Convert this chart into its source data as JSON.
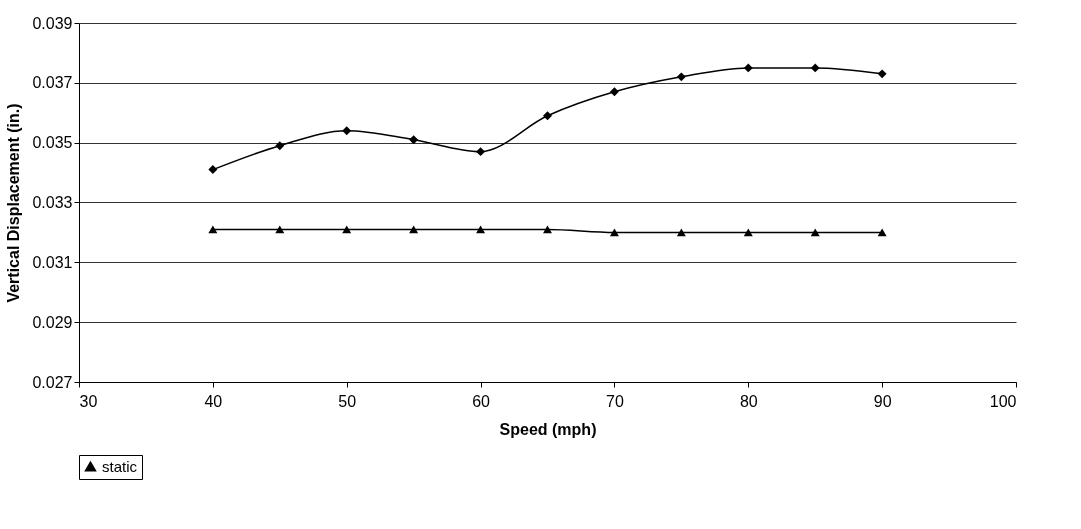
{
  "chart_data": {
    "type": "line",
    "xlabel": "Speed (mph)",
    "ylabel": "Vertical Displacement (in.)",
    "x": [
      40,
      45,
      50,
      55,
      60,
      65,
      70,
      75,
      80,
      85,
      90
    ],
    "series": [
      {
        "color": "#000000",
        "marker": "diamond",
        "values": [
          0.0341,
          0.0349,
          0.0354,
          0.0351,
          0.0347,
          0.0359,
          0.0367,
          0.0372,
          0.0375,
          0.0375,
          0.0373
        ]
      },
      {
        "name": "static",
        "color": "#000000",
        "marker": "triangle",
        "values": [
          0.0321,
          0.0321,
          0.0321,
          0.0321,
          0.0321,
          0.0321,
          0.032,
          0.032,
          0.032,
          0.032,
          0.032
        ]
      }
    ],
    "xlim": [
      30,
      100
    ],
    "xticks": [
      30,
      40,
      50,
      60,
      70,
      80,
      90,
      100
    ],
    "ylim": [
      0.027,
      0.039
    ],
    "yticks": [
      0.027,
      0.029,
      0.031,
      0.033,
      0.035,
      0.037,
      0.039
    ],
    "grid": "y",
    "legend": "bottom",
    "line_style": "solid"
  }
}
